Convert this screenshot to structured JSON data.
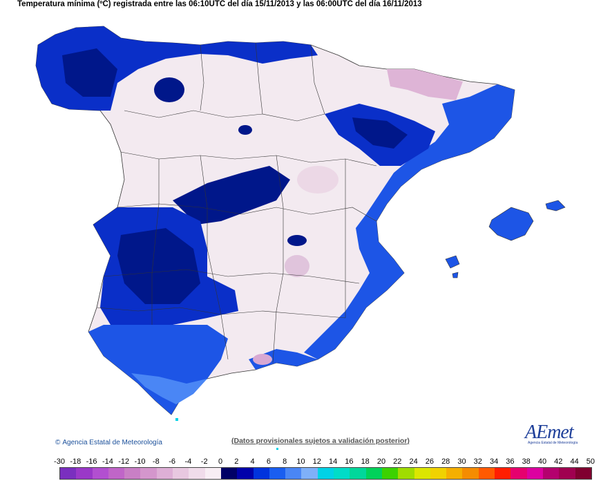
{
  "title": "Temperatura mínima (ºC) registrada entre las 06:10UTC del día 15/11/2013 y las 06:00UTC del día 16/11/2013",
  "credit": "Agencia Estatal de Meteorología",
  "credit_symbol": "©",
  "provisional_note": "(Datos provisionales sujetos a validación posterior)",
  "logo": {
    "text": "AEmet",
    "subtitle": "Agencia Estatal de Meteorología"
  },
  "legend": {
    "labels": [
      "-30",
      "-18",
      "-16",
      "-14",
      "-12",
      "-10",
      "-8",
      "-6",
      "-4",
      "-2",
      "0",
      "2",
      "4",
      "6",
      "8",
      "10",
      "12",
      "14",
      "16",
      "18",
      "20",
      "22",
      "24",
      "26",
      "28",
      "30",
      "32",
      "34",
      "36",
      "38",
      "40",
      "42",
      "44",
      "50"
    ],
    "colors": [
      "#7a2fbf",
      "#9a38c8",
      "#b24fd0",
      "#c065c8",
      "#c97fc5",
      "#d496cc",
      "#deafd6",
      "#e8c8e0",
      "#f0dcea",
      "#f8eef4",
      "#000066",
      "#0000aa",
      "#0033dd",
      "#1a5ef0",
      "#4a86f5",
      "#7fb0f8",
      "#00d2e6",
      "#00dcc8",
      "#00d79b",
      "#00d25a",
      "#3cd200",
      "#a0dc00",
      "#dce600",
      "#f0d200",
      "#f5af00",
      "#f58c00",
      "#ff5a00",
      "#ff1e00",
      "#e6006e",
      "#dc00a0",
      "#b4006e",
      "#a00050",
      "#800030"
    ]
  }
}
